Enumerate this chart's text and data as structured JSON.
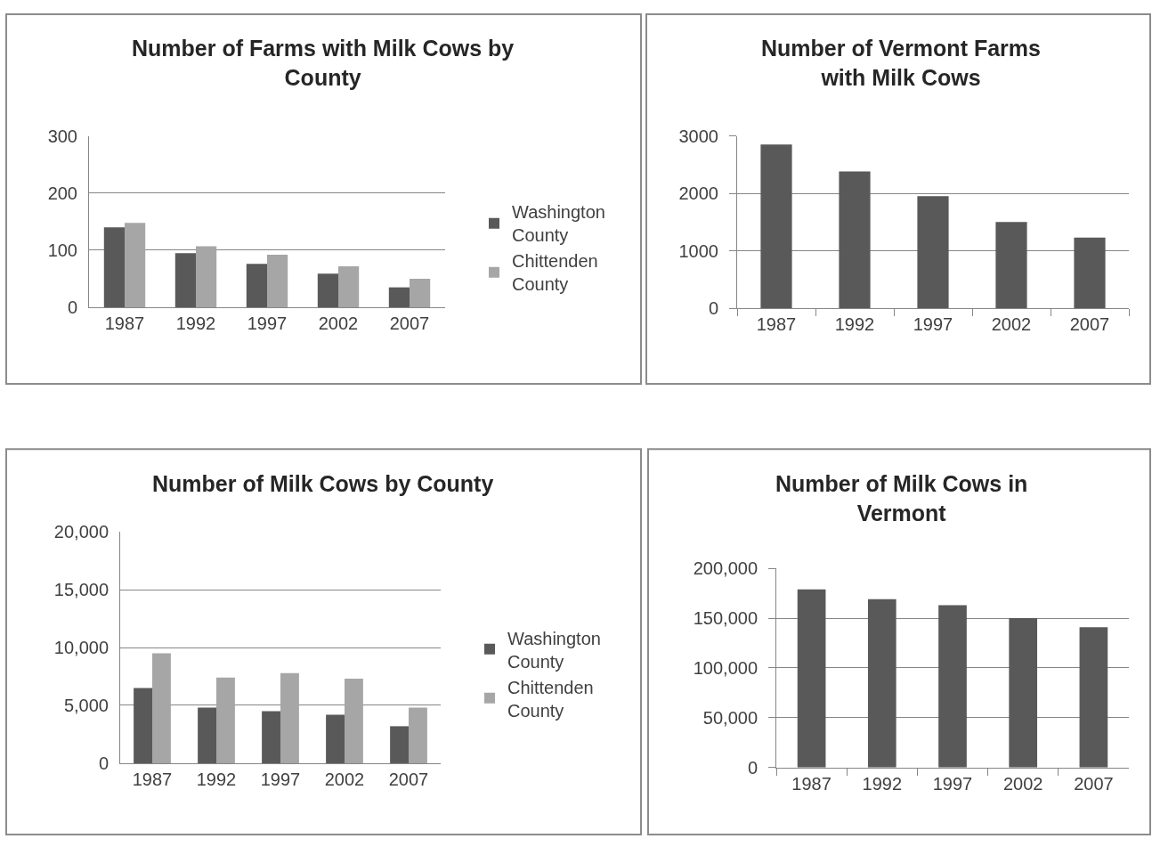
{
  "chart_data": [
    {
      "type": "bar",
      "title": "Number of Farms with Milk Cows by County",
      "categories": [
        "1987",
        "1992",
        "1997",
        "2002",
        "2007"
      ],
      "series": [
        {
          "name": "Washington County",
          "color": "#595959",
          "values": [
            140,
            95,
            76,
            59,
            35
          ]
        },
        {
          "name": "Chittenden County",
          "color": "#a6a6a6",
          "values": [
            148,
            107,
            92,
            72,
            50
          ]
        }
      ],
      "ylim": [
        0,
        300
      ],
      "yticks": [
        0,
        100,
        200,
        300
      ],
      "grid": "y",
      "legend": "right"
    },
    {
      "type": "bar",
      "title": "Number of Vermont Farms with Milk Cows",
      "categories": [
        "1987",
        "1992",
        "1997",
        "2002",
        "2007"
      ],
      "values": [
        2850,
        2380,
        1950,
        1500,
        1230
      ],
      "color": "#595959",
      "ylim": [
        0,
        3000
      ],
      "yticks": [
        0,
        1000,
        2000,
        3000
      ],
      "grid": "y"
    },
    {
      "type": "bar",
      "title": "Number of Milk Cows by County",
      "categories": [
        "1987",
        "1992",
        "1997",
        "2002",
        "2007"
      ],
      "series": [
        {
          "name": "Washington County",
          "color": "#595959",
          "values": [
            6500,
            4800,
            4500,
            4200,
            3200
          ]
        },
        {
          "name": "Chittenden County",
          "color": "#a6a6a6",
          "values": [
            9500,
            7400,
            7800,
            7300,
            4800
          ]
        }
      ],
      "ylim": [
        0,
        20000
      ],
      "yticks": [
        0,
        {
          "value": 5000,
          "label": "5,000"
        },
        {
          "value": 10000,
          "label": "10,000"
        },
        {
          "value": 15000,
          "label": "15,000"
        },
        {
          "value": 20000,
          "label": "20,000"
        }
      ],
      "grid": "y",
      "legend": "right"
    },
    {
      "type": "bar",
      "title": "Number of Milk Cows in Vermont",
      "categories": [
        "1987",
        "1992",
        "1997",
        "2002",
        "2007"
      ],
      "values": [
        179000,
        169000,
        163000,
        150000,
        141000
      ],
      "color": "#595959",
      "ylim": [
        0,
        200000
      ],
      "yticks": [
        0,
        {
          "value": 50000,
          "label": "50,000"
        },
        {
          "value": 100000,
          "label": "100,000"
        },
        {
          "value": 150000,
          "label": "150,000"
        },
        {
          "value": 200000,
          "label": "200,000"
        }
      ],
      "grid": "y"
    }
  ]
}
